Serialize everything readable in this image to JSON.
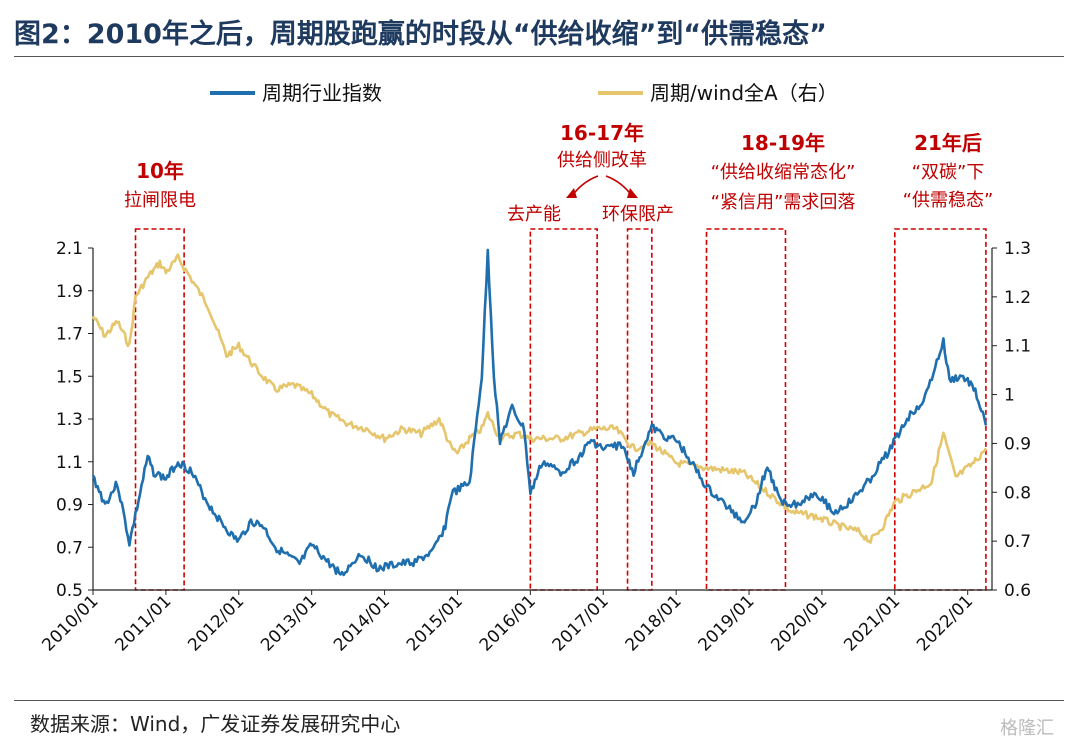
{
  "title": "图2：2010年之后，周期股跑赢的时段从“供给收缩”到“供需稳态”",
  "source": "数据来源：Wind，广发证券发展研究中心",
  "watermark": "格隆汇",
  "colors": {
    "primary": "#1f6fae",
    "secondary": "#e6c66d",
    "annotation": "#c00000",
    "text": "#1f3a5f"
  },
  "chart_data": {
    "type": "line",
    "title": "图2：2010年之后，周期股跑赢的时段从“供给收缩”到“供需稳态”",
    "x_tick_labels": [
      "2010/01",
      "2011/01",
      "2012/01",
      "2013/01",
      "2014/01",
      "2015/01",
      "2016/01",
      "2017/01",
      "2018/01",
      "2019/01",
      "2020/01",
      "2021/01",
      "2022/01"
    ],
    "y_left": {
      "range": [
        0.5,
        2.1
      ],
      "ticks": [
        "0.5",
        "0.7",
        "0.9",
        "1.1",
        "1.3",
        "1.5",
        "1.7",
        "1.9",
        "2.1"
      ]
    },
    "y_right": {
      "range": [
        0.6,
        1.3
      ],
      "ticks": [
        "0.6",
        "0.7",
        "0.8",
        "0.9",
        "1",
        "1.1",
        "1.2",
        "1.3"
      ]
    },
    "legend_position": "top",
    "grid": false,
    "series": [
      {
        "name": "周期行业指数",
        "axis": "left",
        "color": "#1f6fae",
        "points": [
          [
            "2010-01",
            1.03
          ],
          [
            "2010-03",
            0.9
          ],
          [
            "2010-05",
            1.0
          ],
          [
            "2010-07",
            0.72
          ],
          [
            "2010-08",
            0.85
          ],
          [
            "2010-10",
            1.12
          ],
          [
            "2010-11",
            1.05
          ],
          [
            "2011-01",
            1.02
          ],
          [
            "2011-03",
            1.1
          ],
          [
            "2011-05",
            1.06
          ],
          [
            "2011-08",
            0.9
          ],
          [
            "2011-10",
            0.82
          ],
          [
            "2011-12",
            0.75
          ],
          [
            "2012-01",
            0.73
          ],
          [
            "2012-03",
            0.82
          ],
          [
            "2012-05",
            0.8
          ],
          [
            "2012-07",
            0.7
          ],
          [
            "2012-09",
            0.66
          ],
          [
            "2012-11",
            0.62
          ],
          [
            "2013-01",
            0.71
          ],
          [
            "2013-04",
            0.62
          ],
          [
            "2013-06",
            0.57
          ],
          [
            "2013-09",
            0.67
          ],
          [
            "2013-12",
            0.6
          ],
          [
            "2014-03",
            0.62
          ],
          [
            "2014-06",
            0.63
          ],
          [
            "2014-09",
            0.68
          ],
          [
            "2014-11",
            0.8
          ],
          [
            "2014-12",
            0.95
          ],
          [
            "2015-03",
            1.0
          ],
          [
            "2015-05",
            1.5
          ],
          [
            "2015-06",
            2.08
          ],
          [
            "2015-07",
            1.5
          ],
          [
            "2015-08",
            1.2
          ],
          [
            "2015-10",
            1.35
          ],
          [
            "2015-12",
            1.25
          ],
          [
            "2016-01",
            0.95
          ],
          [
            "2016-03",
            1.1
          ],
          [
            "2016-06",
            1.05
          ],
          [
            "2016-09",
            1.12
          ],
          [
            "2016-11",
            1.2
          ],
          [
            "2017-01",
            1.16
          ],
          [
            "2017-04",
            1.18
          ],
          [
            "2017-06",
            1.05
          ],
          [
            "2017-08",
            1.2
          ],
          [
            "2017-09",
            1.26
          ],
          [
            "2017-11",
            1.22
          ],
          [
            "2018-01",
            1.2
          ],
          [
            "2018-03",
            1.12
          ],
          [
            "2018-06",
            0.98
          ],
          [
            "2018-09",
            0.9
          ],
          [
            "2018-12",
            0.82
          ],
          [
            "2019-02",
            0.9
          ],
          [
            "2019-04",
            1.08
          ],
          [
            "2019-06",
            0.92
          ],
          [
            "2019-09",
            0.9
          ],
          [
            "2019-12",
            0.96
          ],
          [
            "2020-03",
            0.86
          ],
          [
            "2020-06",
            0.92
          ],
          [
            "2020-09",
            1.02
          ],
          [
            "2020-12",
            1.15
          ],
          [
            "2021-03",
            1.3
          ],
          [
            "2021-06",
            1.4
          ],
          [
            "2021-09",
            1.66
          ],
          [
            "2021-10",
            1.48
          ],
          [
            "2021-12",
            1.5
          ],
          [
            "2022-02",
            1.45
          ],
          [
            "2022-04",
            1.27
          ]
        ]
      },
      {
        "name": "周期/wind全A（右）",
        "axis": "right",
        "color": "#e6c66d",
        "points": [
          [
            "2010-01",
            1.16
          ],
          [
            "2010-03",
            1.12
          ],
          [
            "2010-05",
            1.15
          ],
          [
            "2010-07",
            1.1
          ],
          [
            "2010-08",
            1.2
          ],
          [
            "2010-10",
            1.24
          ],
          [
            "2010-12",
            1.27
          ],
          [
            "2011-01",
            1.25
          ],
          [
            "2011-03",
            1.28
          ],
          [
            "2011-05",
            1.24
          ],
          [
            "2011-08",
            1.18
          ],
          [
            "2011-11",
            1.08
          ],
          [
            "2012-01",
            1.1
          ],
          [
            "2012-04",
            1.05
          ],
          [
            "2012-07",
            1.01
          ],
          [
            "2012-10",
            1.02
          ],
          [
            "2013-01",
            1.0
          ],
          [
            "2013-04",
            0.96
          ],
          [
            "2013-07",
            0.94
          ],
          [
            "2013-10",
            0.93
          ],
          [
            "2014-01",
            0.91
          ],
          [
            "2014-04",
            0.93
          ],
          [
            "2014-07",
            0.92
          ],
          [
            "2014-10",
            0.95
          ],
          [
            "2014-12",
            0.89
          ],
          [
            "2015-01",
            0.88
          ],
          [
            "2015-03",
            0.91
          ],
          [
            "2015-05",
            0.93
          ],
          [
            "2015-06",
            0.96
          ],
          [
            "2015-08",
            0.91
          ],
          [
            "2015-11",
            0.92
          ],
          [
            "2016-01",
            0.91
          ],
          [
            "2016-06",
            0.91
          ],
          [
            "2016-09",
            0.92
          ],
          [
            "2016-12",
            0.93
          ],
          [
            "2017-03",
            0.93
          ],
          [
            "2017-06",
            0.89
          ],
          [
            "2017-09",
            0.9
          ],
          [
            "2018-01",
            0.86
          ],
          [
            "2018-06",
            0.85
          ],
          [
            "2018-12",
            0.84
          ],
          [
            "2019-04",
            0.8
          ],
          [
            "2019-08",
            0.76
          ],
          [
            "2019-12",
            0.75
          ],
          [
            "2020-04",
            0.73
          ],
          [
            "2020-07",
            0.72
          ],
          [
            "2020-09",
            0.7
          ],
          [
            "2020-11",
            0.73
          ],
          [
            "2021-01",
            0.78
          ],
          [
            "2021-04",
            0.8
          ],
          [
            "2021-07",
            0.82
          ],
          [
            "2021-09",
            0.92
          ],
          [
            "2021-11",
            0.83
          ],
          [
            "2022-02",
            0.86
          ],
          [
            "2022-04",
            0.89
          ]
        ]
      }
    ],
    "annotations": [
      {
        "label": "10年",
        "lines": [
          "拉闸限电"
        ],
        "start": "2010-08",
        "end": "2011-04"
      },
      {
        "label": "16-17年",
        "lines": [
          "供给侧改革"
        ],
        "sublabels": [
          "去产能",
          "环保限产"
        ],
        "start": "2016-01",
        "end": "2016-12"
      },
      {
        "label": "",
        "lines": [],
        "start": "2017-05",
        "end": "2017-09"
      },
      {
        "label": "18-19年",
        "lines": [
          "“供给收缩常态化”",
          "“紧信用”需求回落"
        ],
        "start": "2018-06",
        "end": "2019-07"
      },
      {
        "label": "21年后",
        "lines": [
          "“双碳”下",
          "“供需稳态”"
        ],
        "start": "2021-01",
        "end": "2022-04"
      }
    ]
  },
  "legend": {
    "series1": "周期行业指数",
    "series2": "周期/wind全A（右）"
  }
}
